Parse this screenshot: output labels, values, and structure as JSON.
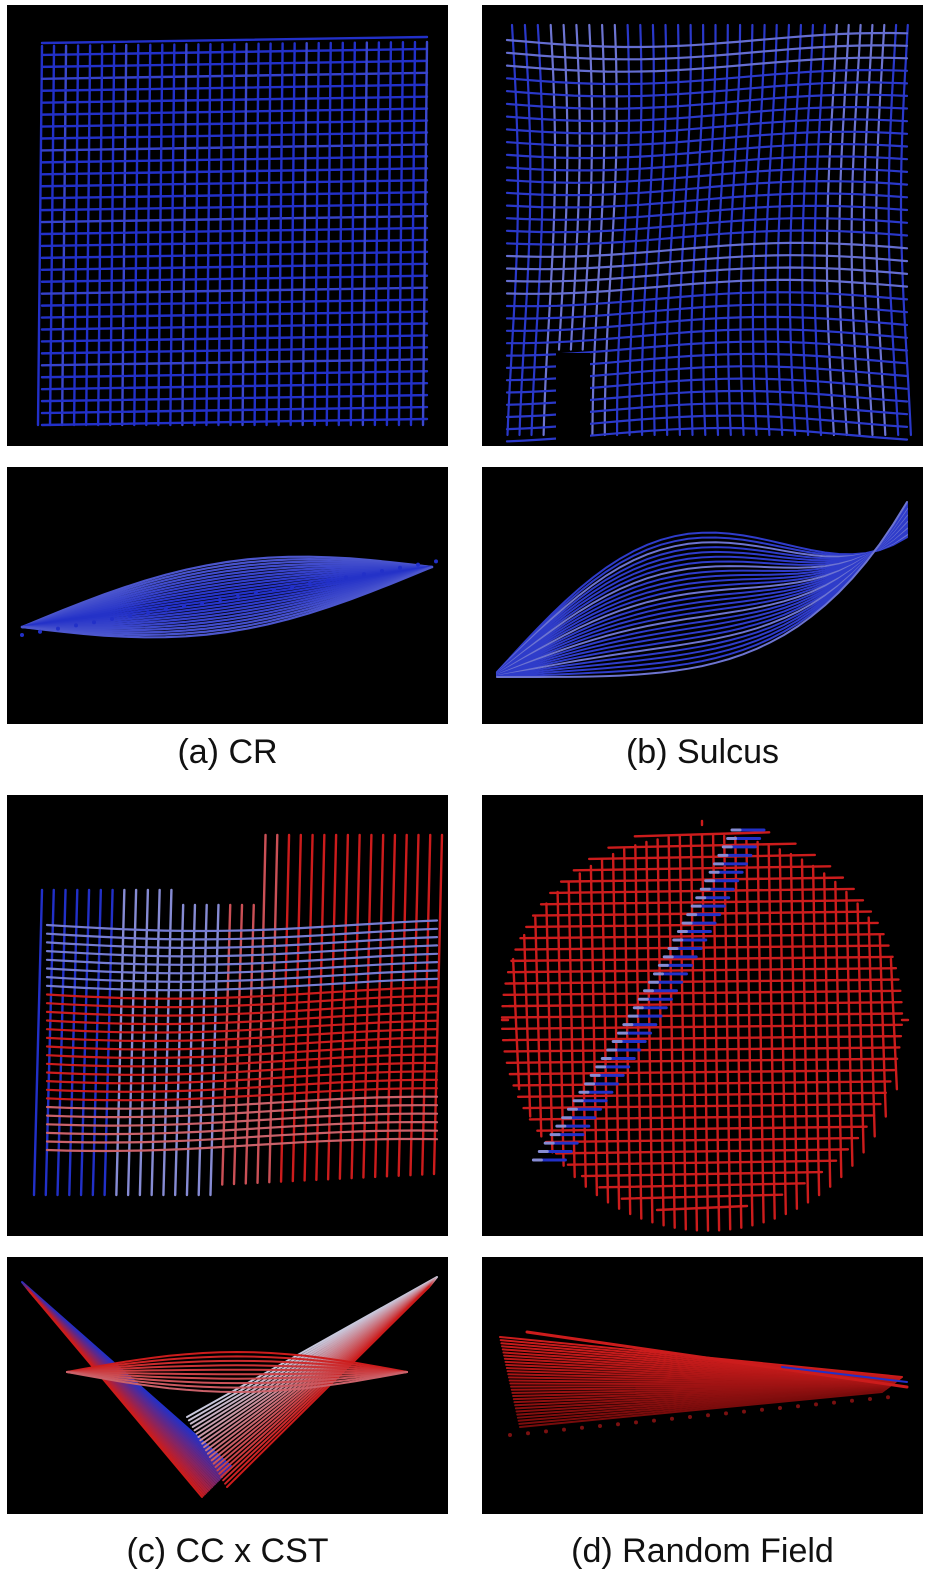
{
  "figure": {
    "captions": {
      "a": "(a) CR",
      "b": "(b) Sulcus",
      "c": "(c) CC x CST",
      "d": "(d) Random Field"
    },
    "colors": {
      "background": "#000000",
      "blue": "#2230c8",
      "red": "#cc1c1c",
      "white": "#c8c8dc"
    },
    "panels": [
      {
        "id": "a-top",
        "view": "top",
        "color_scheme": "blue"
      },
      {
        "id": "a-side",
        "view": "side",
        "color_scheme": "blue"
      },
      {
        "id": "b-top",
        "view": "top",
        "color_scheme": "blue-white"
      },
      {
        "id": "b-side",
        "view": "side",
        "color_scheme": "blue-white"
      },
      {
        "id": "c-top",
        "view": "top",
        "color_scheme": "blue-white-red"
      },
      {
        "id": "c-side",
        "view": "side",
        "color_scheme": "blue-white-red"
      },
      {
        "id": "d-top",
        "view": "top",
        "color_scheme": "red-blue-band"
      },
      {
        "id": "d-side",
        "view": "side",
        "color_scheme": "red"
      }
    ]
  }
}
